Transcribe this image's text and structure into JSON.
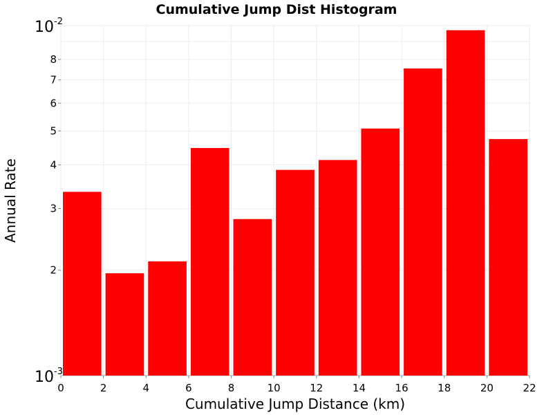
{
  "chart_data": {
    "type": "bar",
    "title": "Cumulative Jump Dist Histogram",
    "xlabel": "Cumulative Jump Distance (km)",
    "ylabel": "Annual Rate",
    "x_ticks": [
      "0",
      "2",
      "4",
      "6",
      "8",
      "10",
      "12",
      "14",
      "16",
      "18",
      "20",
      "22"
    ],
    "xlim": [
      0,
      22
    ],
    "y_scale": "log",
    "ylim": [
      0.001,
      0.01
    ],
    "y_ticks_minor": [
      "2",
      "3",
      "4",
      "5",
      "6",
      "7",
      "8"
    ],
    "y_ticks_major": [
      {
        "base": "10",
        "exp": "-3"
      },
      {
        "base": "10",
        "exp": "-2"
      }
    ],
    "grid": true,
    "bar_color": "#ff0000",
    "bins": [
      {
        "x_start": 0,
        "x_end": 2,
        "value": 0.00335
      },
      {
        "x_start": 2,
        "x_end": 4,
        "value": 0.00196
      },
      {
        "x_start": 4,
        "x_end": 6,
        "value": 0.00212
      },
      {
        "x_start": 6,
        "x_end": 8,
        "value": 0.00447
      },
      {
        "x_start": 8,
        "x_end": 10,
        "value": 0.0028
      },
      {
        "x_start": 10,
        "x_end": 12,
        "value": 0.00387
      },
      {
        "x_start": 12,
        "x_end": 14,
        "value": 0.00413
      },
      {
        "x_start": 14,
        "x_end": 16,
        "value": 0.00508
      },
      {
        "x_start": 16,
        "x_end": 18,
        "value": 0.00754
      },
      {
        "x_start": 18,
        "x_end": 20,
        "value": 0.0097
      },
      {
        "x_start": 20,
        "x_end": 22,
        "value": 0.00474
      }
    ]
  }
}
